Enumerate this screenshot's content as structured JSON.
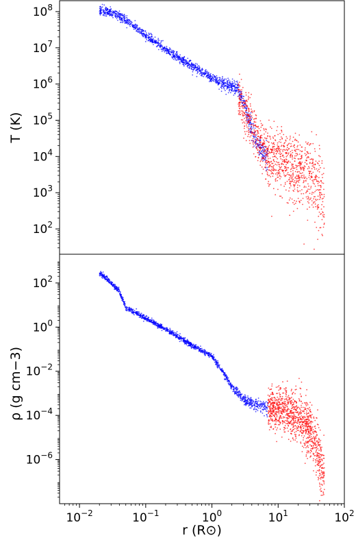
{
  "chart_data": [
    {
      "type": "scatter",
      "title": "",
      "xlabel": "r (R⊙)",
      "ylabel": "T (K)",
      "xscale": "log",
      "yscale": "log",
      "xlim": [
        0.005,
        100
      ],
      "ylim": [
        20,
        200000000
      ],
      "x_ticks": [
        {
          "value": 0.01,
          "base": "10",
          "exp": "−2"
        },
        {
          "value": 0.1,
          "base": "10",
          "exp": "−1"
        },
        {
          "value": 1,
          "base": "10",
          "exp": "0"
        },
        {
          "value": 10,
          "base": "10",
          "exp": "1"
        },
        {
          "value": 100,
          "base": "10",
          "exp": "2"
        }
      ],
      "y_ticks": [
        {
          "value": 100,
          "base": "10",
          "exp": "2"
        },
        {
          "value": 1000,
          "base": "10",
          "exp": "3"
        },
        {
          "value": 10000,
          "base": "10",
          "exp": "4"
        },
        {
          "value": 100000,
          "base": "10",
          "exp": "5"
        },
        {
          "value": 1000000,
          "base": "10",
          "exp": "6"
        },
        {
          "value": 10000000,
          "base": "10",
          "exp": "7"
        },
        {
          "value": 100000000,
          "base": "10",
          "exp": "8"
        }
      ],
      "series": [
        {
          "color": "#0000ff",
          "trend": [
            [
              0.02,
              110000000
            ],
            [
              0.03,
              95000000
            ],
            [
              0.05,
              60000000
            ],
            [
              0.1,
              22000000
            ],
            [
              0.2,
              9000000
            ],
            [
              0.4,
              4000000
            ],
            [
              0.7,
              2200000
            ],
            [
              1.0,
              1500000
            ],
            [
              1.5,
              1000000
            ],
            [
              2.0,
              900000
            ],
            [
              2.5,
              700000
            ],
            [
              3.0,
              300000
            ],
            [
              4.0,
              60000
            ],
            [
              5.0,
              20000
            ],
            [
              7.0,
              9000
            ]
          ],
          "scatter_dex": 0.12
        },
        {
          "color": "#ff0000",
          "trend": [
            [
              2.5,
              400000
            ],
            [
              4.0,
              60000
            ],
            [
              7.0,
              10000
            ],
            [
              10.0,
              8000
            ],
            [
              15.0,
              5000
            ],
            [
              20.0,
              4000
            ],
            [
              30.0,
              2500
            ],
            [
              40.0,
              1500
            ],
            [
              50.0,
              800
            ]
          ],
          "scatter_dex": 0.3
        }
      ]
    },
    {
      "type": "scatter",
      "title": "",
      "xlabel": "r (R⊙)",
      "ylabel": "ρ (g cm−3)",
      "xscale": "log",
      "yscale": "log",
      "xlim": [
        0.005,
        100
      ],
      "ylim": [
        1e-08,
        2000
      ],
      "x_ticks": [
        {
          "value": 0.01,
          "base": "10",
          "exp": "−2"
        },
        {
          "value": 0.1,
          "base": "10",
          "exp": "−1"
        },
        {
          "value": 1,
          "base": "10",
          "exp": "0"
        },
        {
          "value": 10,
          "base": "10",
          "exp": "1"
        },
        {
          "value": 100,
          "base": "10",
          "exp": "2"
        }
      ],
      "y_ticks": [
        {
          "value": 1e-06,
          "base": "10",
          "exp": "−6"
        },
        {
          "value": 0.0001,
          "base": "10",
          "exp": "−4"
        },
        {
          "value": 0.01,
          "base": "10",
          "exp": "−2"
        },
        {
          "value": 1,
          "base": "10",
          "exp": "0"
        },
        {
          "value": 100,
          "base": "10",
          "exp": "2"
        }
      ],
      "series": [
        {
          "color": "#0000ff",
          "trend": [
            [
              0.02,
              300
            ],
            [
              0.03,
              100
            ],
            [
              0.04,
              40
            ],
            [
              0.05,
              8
            ],
            [
              0.1,
              2.5
            ],
            [
              0.2,
              0.8
            ],
            [
              0.5,
              0.15
            ],
            [
              1.0,
              0.05
            ],
            [
              1.5,
              0.008
            ],
            [
              2.0,
              0.002
            ],
            [
              3.0,
              0.0005
            ],
            [
              5.0,
              0.0003
            ],
            [
              7.0,
              0.0002
            ]
          ],
          "scatter_dex": 0.12
        },
        {
          "color": "#ff0000",
          "trend": [
            [
              7.0,
              0.0002
            ],
            [
              10.0,
              0.0002
            ],
            [
              15.0,
              0.00015
            ],
            [
              20.0,
              8e-05
            ],
            [
              30.0,
              2e-05
            ],
            [
              40.0,
              2e-06
            ],
            [
              50.0,
              2e-07
            ]
          ],
          "scatter_dex": 0.35
        }
      ]
    }
  ]
}
